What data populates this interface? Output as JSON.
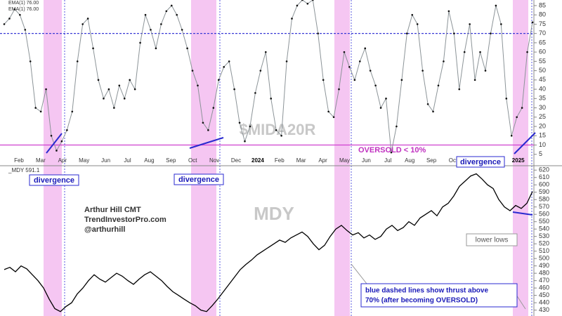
{
  "chart_data": [
    {
      "type": "line",
      "title": "$MIDA20R",
      "legend": [
        "EMA(1) 76.00",
        "EMA(1) 76.00"
      ],
      "xtick_labels": [
        "Feb",
        "Mar",
        "Apr",
        "May",
        "Jun",
        "Jul",
        "Aug",
        "Sep",
        "Oct",
        "Nov",
        "Dec",
        "2024",
        "Feb",
        "Mar",
        "Apr",
        "May",
        "Jun",
        "Jul",
        "Aug",
        "Sep",
        "Oct",
        null,
        null,
        "2025"
      ],
      "series": [
        {
          "name": "$MIDA20R",
          "color": "#8c9498",
          "values": [
            75,
            78,
            83,
            80,
            72,
            55,
            30,
            28,
            40,
            15,
            7,
            12,
            18,
            28,
            55,
            75,
            78,
            62,
            45,
            35,
            40,
            30,
            42,
            35,
            45,
            40,
            65,
            80,
            72,
            62,
            75,
            82,
            85,
            80,
            72,
            62,
            50,
            42,
            22,
            18,
            30,
            45,
            52,
            55,
            40,
            22,
            12,
            20,
            38,
            50,
            60,
            35,
            18,
            15,
            55,
            78,
            85,
            88,
            86,
            88,
            70,
            45,
            28,
            25,
            40,
            60,
            52,
            45,
            55,
            62,
            50,
            42,
            30,
            35,
            6,
            20,
            45,
            70,
            80,
            75,
            50,
            32,
            28,
            42,
            55,
            82,
            70,
            40,
            60,
            75,
            45,
            60,
            50,
            70,
            85,
            75,
            35,
            15,
            25,
            30,
            60,
            76
          ]
        }
      ],
      "reference_lines": [
        {
          "value": 70,
          "color": "#3b3bd6",
          "dashed": true
        },
        {
          "value": 10,
          "color": "#d040d0",
          "dashed": false
        }
      ],
      "annotations": [
        "OVERSOLD < 10%",
        "divergence",
        "divergence",
        "divergence"
      ],
      "ylim": [
        0,
        88
      ],
      "yticks": [
        5,
        10,
        15,
        20,
        25,
        30,
        35,
        40,
        45,
        50,
        55,
        60,
        65,
        70,
        75,
        80,
        85
      ]
    },
    {
      "type": "line",
      "title": "MDY",
      "legend": [
        "_MDY 591.1"
      ],
      "series": [
        {
          "name": "_MDY",
          "color": "#000000",
          "values": [
            485,
            488,
            482,
            490,
            486,
            478,
            470,
            460,
            445,
            432,
            428,
            435,
            440,
            452,
            460,
            470,
            478,
            472,
            468,
            474,
            480,
            476,
            470,
            465,
            472,
            478,
            482,
            476,
            470,
            462,
            455,
            450,
            445,
            440,
            436,
            430,
            428,
            436,
            445,
            455,
            465,
            475,
            485,
            492,
            498,
            505,
            510,
            515,
            520,
            525,
            522,
            528,
            532,
            536,
            530,
            520,
            512,
            518,
            530,
            540,
            545,
            538,
            532,
            535,
            528,
            532,
            526,
            530,
            540,
            545,
            538,
            542,
            550,
            545,
            555,
            560,
            565,
            558,
            570,
            575,
            585,
            598,
            605,
            612,
            615,
            608,
            600,
            595,
            580,
            570,
            565,
            572,
            568,
            575,
            591
          ]
        }
      ],
      "annotations": [
        "Arthur Hill CMT",
        "TrendInvestorPro.com",
        "@arthurhill",
        "lower lows",
        "blue dashed lines show thrust above",
        "70%  (after becoming OVERSOLD)"
      ],
      "ylim": [
        422,
        625
      ],
      "yticks": [
        430,
        440,
        450,
        460,
        470,
        480,
        490,
        500,
        510,
        520,
        530,
        540,
        550,
        560,
        570,
        580,
        590,
        600,
        610,
        620
      ]
    }
  ]
}
